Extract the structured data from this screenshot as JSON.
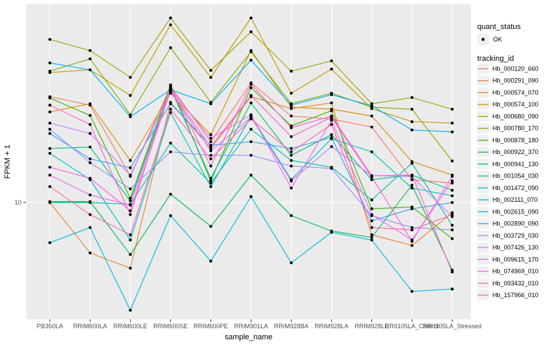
{
  "chart_data": {
    "type": "line",
    "title": "",
    "xlabel": "sample_name",
    "ylabel": "FPKM + 1",
    "y_axis": {
      "scale": "log10",
      "tick_values": [
        10
      ],
      "tick_labels": [
        "10"
      ],
      "ylim_approx": [
        2.6,
        98
      ]
    },
    "grid": {
      "panel_bg": "#EBEBEB",
      "gridline_color": "#FFFFFF",
      "major_y_at": [
        10
      ],
      "vertical_gridlines": "one per sample"
    },
    "point_marker": {
      "shape": "circle",
      "color": "#000000"
    },
    "categories": [
      "PB350LA",
      "RRIM600LA",
      "RRIM600LE",
      "RRIM600SE",
      "RRIM600PE",
      "RRIM901LA",
      "RRIM928BA",
      "RRIM928LA",
      "RRIM928LE",
      "RRII105LA_Control",
      "RRII105LA_Stressed"
    ],
    "series": [
      {
        "name": "Hb_000120_660",
        "color": "#F8766D",
        "values": [
          33.7,
          30.6,
          13.5,
          38.0,
          20.1,
          39.5,
          27.0,
          26.1,
          23.8,
          13.0,
          12.5
        ]
      },
      {
        "name": "Hb_000291_090",
        "color": "#EA8331",
        "values": [
          10.0,
          5.6,
          4.7,
          31.6,
          18.6,
          33.7,
          29.4,
          31.4,
          6.9,
          6.1,
          8.9
        ]
      },
      {
        "name": "Hb_000574_070",
        "color": "#D89000",
        "values": [
          28.3,
          31.1,
          16.2,
          35.1,
          21.8,
          57.3,
          29.9,
          29.2,
          27.0,
          16.0,
          13.7
        ]
      },
      {
        "name": "Hb_000574_100",
        "color": "#C09B00",
        "values": [
          44.5,
          45.9,
          34.2,
          77.0,
          42.1,
          83.3,
          35.1,
          46.3,
          29.4,
          25.3,
          24.9
        ]
      },
      {
        "name": "Hb_000680_090",
        "color": "#A3A500",
        "values": [
          65.1,
          57.3,
          42.1,
          83.3,
          45.6,
          71.1,
          45.2,
          50.9,
          31.1,
          33.4,
          29.2
        ]
      },
      {
        "name": "Hb_000780_170",
        "color": "#7CAE00",
        "values": [
          45.2,
          52.1,
          27.4,
          59.2,
          31.6,
          56.5,
          31.1,
          35.1,
          29.9,
          29.2,
          16.1
        ]
      },
      {
        "name": "Hb_000878_180",
        "color": "#39B600",
        "values": [
          33.2,
          27.2,
          10.5,
          38.6,
          12.8,
          37.4,
          24.1,
          28.7,
          9.3,
          9.5,
          6.6
        ]
      },
      {
        "name": "Hb_000922_370",
        "color": "#00BB4E",
        "values": [
          10.1,
          10.1,
          5.5,
          11.0,
          7.6,
          13.7,
          8.6,
          7.2,
          6.7,
          12.2,
          4.6
        ]
      },
      {
        "name": "Hb_000941_130",
        "color": "#00BF7D",
        "values": [
          18.6,
          18.9,
          10.2,
          37.1,
          13.2,
          31.4,
          17.2,
          21.8,
          13.0,
          13.7,
          11.5
        ]
      },
      {
        "name": "Hb_001054_030",
        "color": "#00C1A3",
        "values": [
          10.0,
          10.0,
          9.8,
          19.8,
          12.5,
          23.2,
          16.2,
          15.0,
          10.3,
          15.7,
          7.7
        ]
      },
      {
        "name": "Hb_001472_090",
        "color": "#00BFC4",
        "values": [
          17.6,
          13.0,
          6.5,
          28.1,
          12.0,
          27.0,
          13.0,
          20.8,
          17.9,
          11.8,
          10.8
        ]
      },
      {
        "name": "Hb_002111_070",
        "color": "#00BAE0",
        "values": [
          6.3,
          7.5,
          2.9,
          8.6,
          5.1,
          10.7,
          5.0,
          7.1,
          6.5,
          3.6,
          3.7
        ]
      },
      {
        "name": "Hb_002615_090",
        "color": "#00B0F6",
        "values": [
          49.7,
          45.9,
          26.8,
          36.5,
          31.1,
          51.3,
          30.6,
          34.5,
          30.4,
          23.0,
          22.5
        ]
      },
      {
        "name": "Hb_002890_090",
        "color": "#35A2FF",
        "values": [
          22.1,
          16.5,
          14.9,
          31.1,
          19.3,
          20.1,
          18.6,
          21.1,
          8.1,
          9.3,
          10.0
        ]
      },
      {
        "name": "Hb_003729_030",
        "color": "#9590FF",
        "values": [
          23.2,
          15.8,
          11.7,
          17.9,
          17.2,
          17.2,
          15.2,
          14.8,
          8.6,
          7.5,
          7.3
        ]
      },
      {
        "name": "Hb_007426_130",
        "color": "#C77CFF",
        "values": [
          24.9,
          22.1,
          13.7,
          35.9,
          18.1,
          26.6,
          12.8,
          19.0,
          13.6,
          13.5,
          8.5
        ]
      },
      {
        "name": "Hb_009615_170",
        "color": "#E76BF3",
        "values": [
          13.7,
          10.9,
          9.7,
          36.8,
          20.9,
          27.4,
          11.8,
          25.7,
          8.7,
          6.5,
          12.8
        ]
      },
      {
        "name": "Hb_074969_010",
        "color": "#FA62DB",
        "values": [
          15.0,
          13.2,
          9.1,
          36.2,
          19.0,
          34.2,
          21.3,
          26.6,
          13.4,
          6.4,
          13.5
        ]
      },
      {
        "name": "Hb_093432_010",
        "color": "#FF61CC",
        "values": [
          30.6,
          24.5,
          8.7,
          37.7,
          15.2,
          38.9,
          23.6,
          27.0,
          13.6,
          13.7,
          4.5
        ]
      },
      {
        "name": "Hb_157966_010",
        "color": "#FF65AC",
        "values": [
          12.0,
          8.7,
          6.9,
          29.2,
          16.5,
          26.1,
          17.9,
          24.5,
          7.5,
          7.3,
          8.7
        ]
      }
    ],
    "legend_position": "right"
  },
  "legend": {
    "quant_status_title": "quant_status",
    "quant_status_items": [
      {
        "label": "OK",
        "marker_shape": "point",
        "marker_color": "#000000"
      }
    ],
    "tracking_id_title": "tracking_id",
    "key_box_color": "#F0F0F0"
  }
}
